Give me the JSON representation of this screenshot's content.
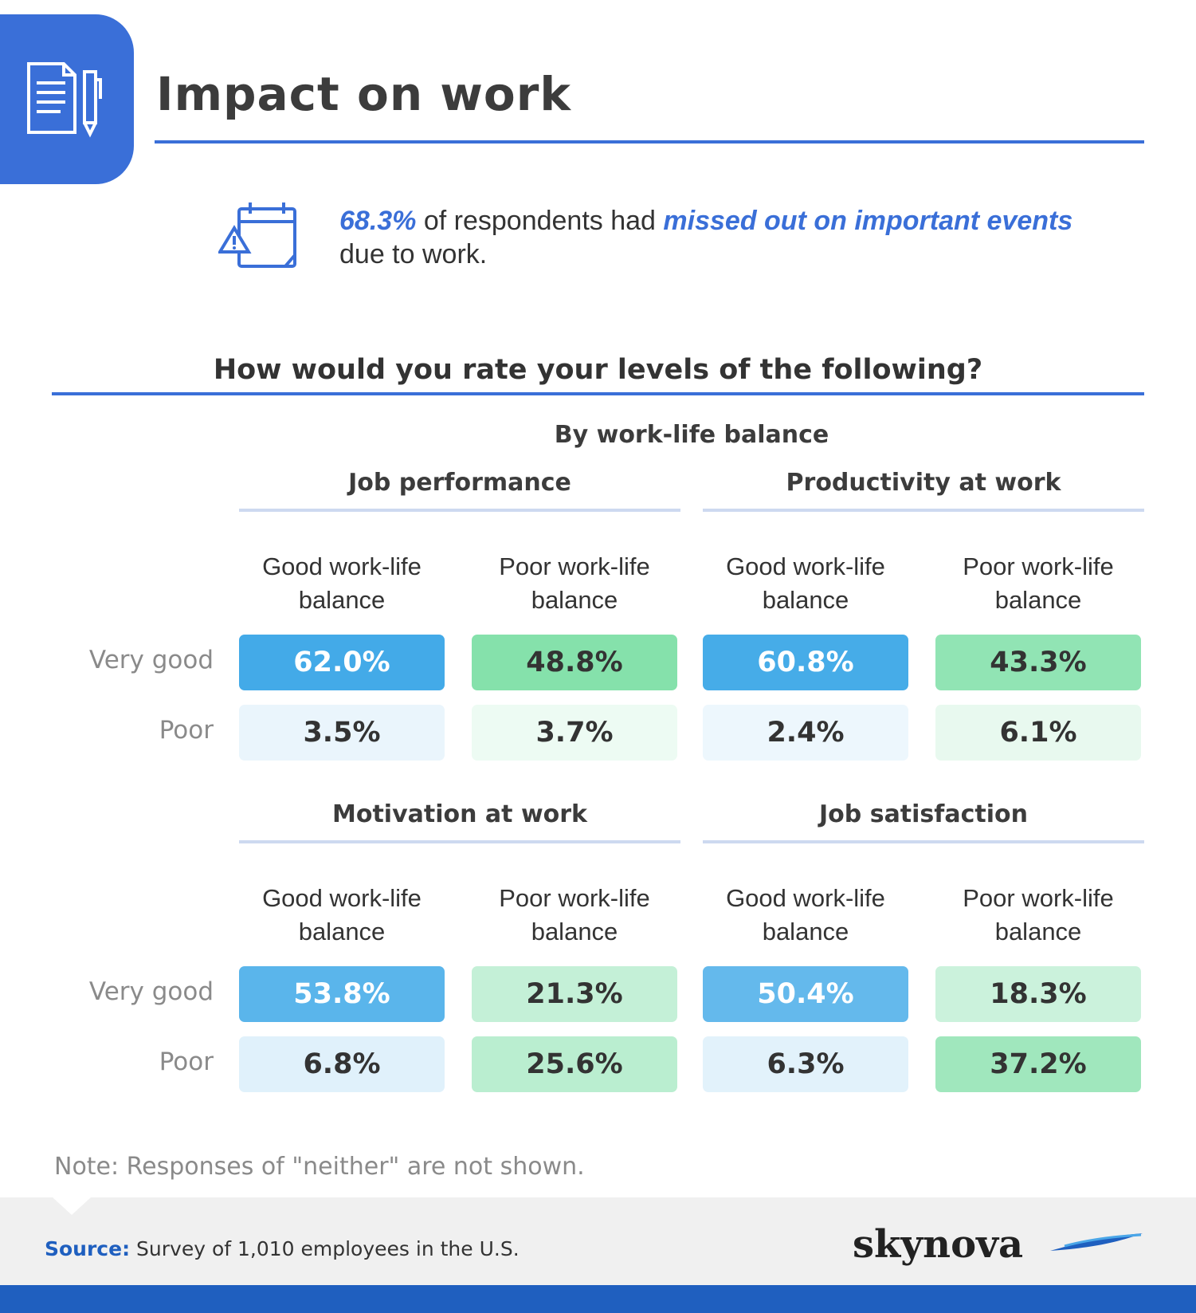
{
  "title": "Impact on work",
  "callout": {
    "pct": "68.3%",
    "text1": " of respondents had ",
    "highlight": "missed out on important events",
    "text2": " due to work."
  },
  "section_heading": "How would you rate your levels of the following?",
  "subheading": "By work-life balance",
  "row_labels": [
    "Very good",
    "Poor"
  ],
  "col_header_1": "Good work-life",
  "col_header_2": "Poor work-life",
  "col_header_line2": "balance",
  "note": "Note: Responses of \"neither\" are not shown.",
  "source": {
    "label": "Source:",
    "text": " Survey of 1,010 employees in the U.S."
  },
  "logo": "skynova",
  "colors": {
    "accent_blue": "#3a6fd8",
    "good_base": [
      67,
      170,
      232
    ],
    "poor_base": [
      102,
      217,
      150
    ]
  },
  "chart_data": {
    "type": "table",
    "title": "How would you rate your levels of the following?",
    "subtitle": "By work-life balance",
    "rows": [
      "Very good",
      "Poor"
    ],
    "columns": [
      "Good work-life balance",
      "Poor work-life balance"
    ],
    "panels": [
      {
        "name": "Job performance",
        "cells": [
          [
            "62.0%",
            "48.8%"
          ],
          [
            "3.5%",
            "3.7%"
          ]
        ],
        "values": [
          [
            62.0,
            48.8
          ],
          [
            3.5,
            3.7
          ]
        ]
      },
      {
        "name": "Productivity at work",
        "cells": [
          [
            "60.8%",
            "43.3%"
          ],
          [
            "2.4%",
            "6.1%"
          ]
        ],
        "values": [
          [
            60.8,
            43.3
          ],
          [
            2.4,
            6.1
          ]
        ]
      },
      {
        "name": "Motivation at work",
        "cells": [
          [
            "53.8%",
            "21.3%"
          ],
          [
            "6.8%",
            "25.6%"
          ]
        ],
        "values": [
          [
            53.8,
            21.3
          ],
          [
            6.8,
            25.6
          ]
        ]
      },
      {
        "name": "Job satisfaction",
        "cells": [
          [
            "50.4%",
            "18.3%"
          ],
          [
            "6.3%",
            "37.2%"
          ]
        ],
        "values": [
          [
            50.4,
            18.3
          ],
          [
            6.3,
            37.2
          ]
        ]
      }
    ]
  }
}
